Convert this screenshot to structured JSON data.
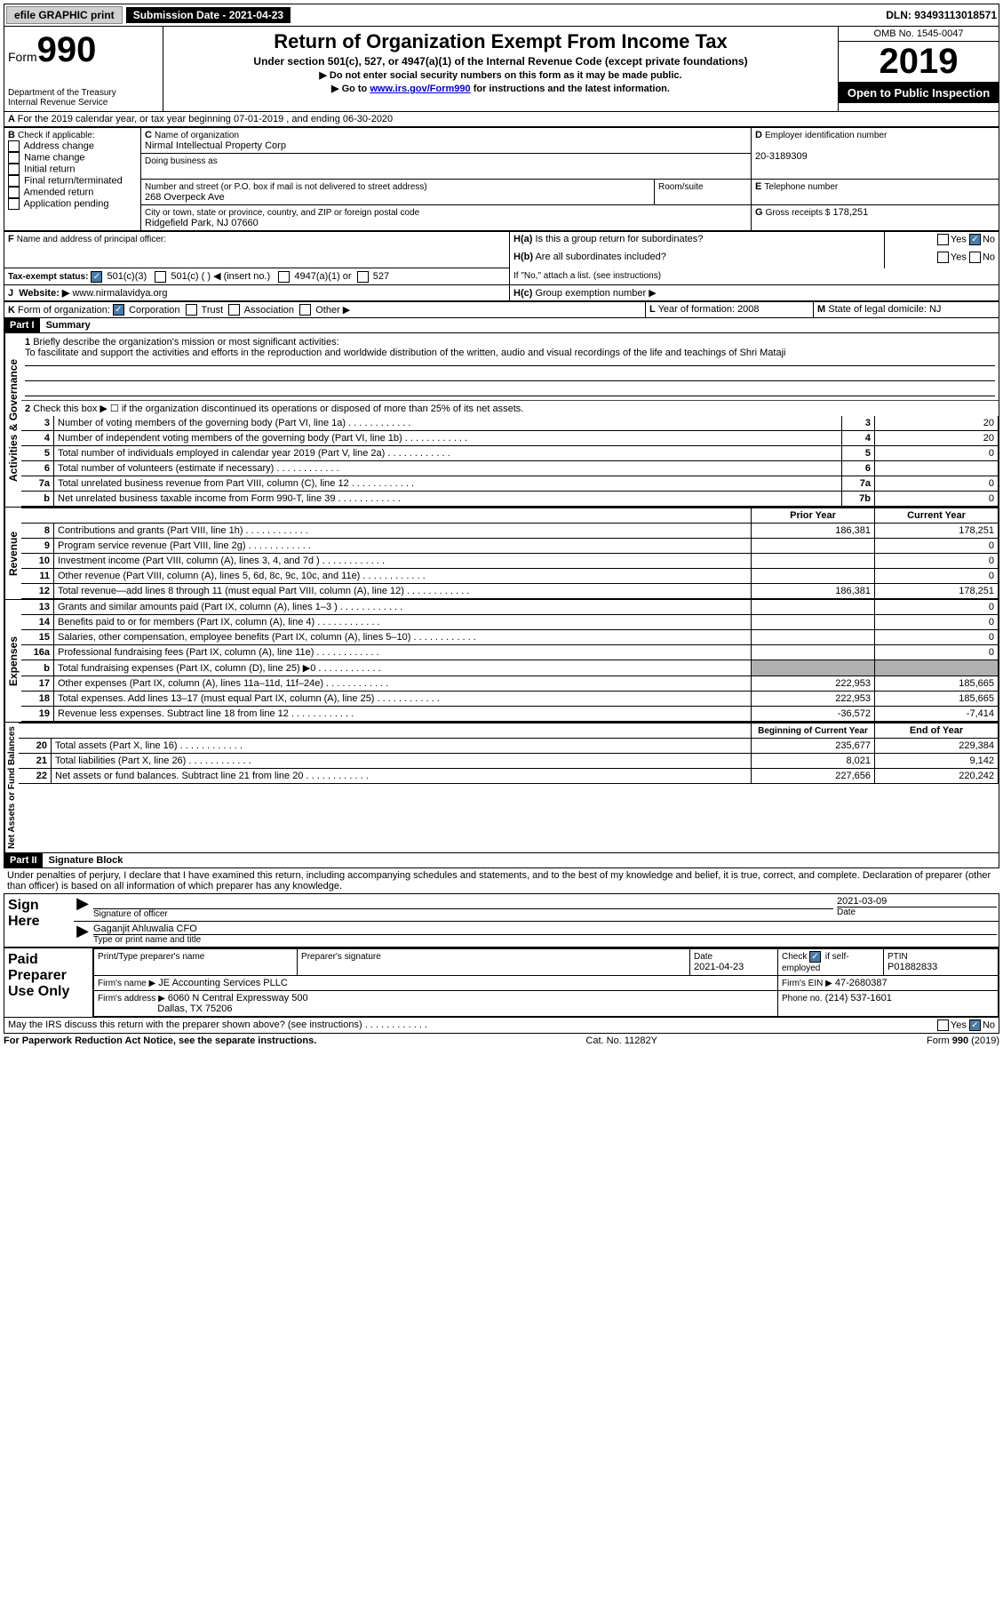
{
  "top_bar": {
    "efile": "efile GRAPHIC print",
    "submission": "Submission Date - 2021-04-23",
    "dln": "DLN: 93493113018571"
  },
  "header": {
    "form_label": "Form",
    "form_num": "990",
    "dept": "Department of the Treasury",
    "irs": "Internal Revenue Service",
    "title": "Return of Organization Exempt From Income Tax",
    "subtitle": "Under section 501(c), 527, or 4947(a)(1) of the Internal Revenue Code (except private foundations)",
    "note1": "Do not enter social security numbers on this form as it may be made public.",
    "note2_pre": "Go to ",
    "note2_link": "www.irs.gov/Form990",
    "note2_post": " for instructions and the latest information.",
    "omb": "OMB No. 1545-0047",
    "year": "2019",
    "inspection": "Open to Public Inspection"
  },
  "section_a": {
    "line": "For the 2019 calendar year, or tax year beginning 07-01-2019    , and ending 06-30-2020"
  },
  "section_b": {
    "label": "Check if applicable:",
    "opts": [
      "Address change",
      "Name change",
      "Initial return",
      "Final return/terminated",
      "Amended return",
      "Application pending"
    ]
  },
  "section_c": {
    "name_label": "Name of organization",
    "name": "Nirmal Intellectual Property Corp",
    "dba_label": "Doing business as",
    "addr_label": "Number and street (or P.O. box if mail is not delivered to street address)",
    "room_label": "Room/suite",
    "addr": "268 Overpeck Ave",
    "city_label": "City or town, state or province, country, and ZIP or foreign postal code",
    "city": "Ridgefield Park, NJ  07660"
  },
  "section_d": {
    "label": "Employer identification number",
    "value": "20-3189309"
  },
  "section_e": {
    "label": "Telephone number"
  },
  "section_g": {
    "label": "Gross receipts $",
    "value": "178,251"
  },
  "section_f": {
    "label": "Name and address of principal officer:"
  },
  "section_h": {
    "a": "Is this a group return for subordinates?",
    "b": "Are all subordinates included?",
    "b_note": "If \"No,\" attach a list. (see instructions)",
    "c": "Group exemption number ▶",
    "yes": "Yes",
    "no": "No"
  },
  "tax_exempt": {
    "label": "Tax-exempt status:",
    "opt1": "501(c)(3)",
    "opt2": "501(c) (  ) ◀ (insert no.)",
    "opt3": "4947(a)(1) or",
    "opt4": "527"
  },
  "section_j": {
    "label": "Website: ▶",
    "value": "www.nirmalavidya.org"
  },
  "section_k": {
    "label": "Form of organization:",
    "opts": [
      "Corporation",
      "Trust",
      "Association",
      "Other ▶"
    ]
  },
  "section_l": {
    "label": "Year of formation:",
    "value": "2008"
  },
  "section_m": {
    "label": "State of legal domicile:",
    "value": "NJ"
  },
  "part1": {
    "header": "Part I",
    "title": "Summary"
  },
  "summary": {
    "line1_label": "Briefly describe the organization's mission or most significant activities:",
    "line1_text": "To fascilitate and support the activities and efforts in the reproduction and worldwide distribution of the written, audio and visual recordings of the life and teachings of Shri Mataji",
    "line2": "Check this box ▶ ☐  if the organization discontinued its operations or disposed of more than 25% of its net assets.",
    "rows_gov": [
      {
        "n": "3",
        "label": "Number of voting members of the governing body (Part VI, line 1a)",
        "box": "3",
        "val": "20"
      },
      {
        "n": "4",
        "label": "Number of independent voting members of the governing body (Part VI, line 1b)",
        "box": "4",
        "val": "20"
      },
      {
        "n": "5",
        "label": "Total number of individuals employed in calendar year 2019 (Part V, line 2a)",
        "box": "5",
        "val": "0"
      },
      {
        "n": "6",
        "label": "Total number of volunteers (estimate if necessary)",
        "box": "6",
        "val": ""
      },
      {
        "n": "7a",
        "label": "Total unrelated business revenue from Part VIII, column (C), line 12",
        "box": "7a",
        "val": "0"
      },
      {
        "n": "b",
        "label": "Net unrelated business taxable income from Form 990-T, line 39",
        "box": "7b",
        "val": "0"
      }
    ],
    "prior": "Prior Year",
    "current": "Current Year",
    "rows_rev": [
      {
        "n": "8",
        "label": "Contributions and grants (Part VIII, line 1h)",
        "py": "186,381",
        "cy": "178,251"
      },
      {
        "n": "9",
        "label": "Program service revenue (Part VIII, line 2g)",
        "py": "",
        "cy": "0"
      },
      {
        "n": "10",
        "label": "Investment income (Part VIII, column (A), lines 3, 4, and 7d )",
        "py": "",
        "cy": "0"
      },
      {
        "n": "11",
        "label": "Other revenue (Part VIII, column (A), lines 5, 6d, 8c, 9c, 10c, and 11e)",
        "py": "",
        "cy": "0"
      },
      {
        "n": "12",
        "label": "Total revenue—add lines 8 through 11 (must equal Part VIII, column (A), line 12)",
        "py": "186,381",
        "cy": "178,251"
      }
    ],
    "rows_exp": [
      {
        "n": "13",
        "label": "Grants and similar amounts paid (Part IX, column (A), lines 1–3 )",
        "py": "",
        "cy": "0"
      },
      {
        "n": "14",
        "label": "Benefits paid to or for members (Part IX, column (A), line 4)",
        "py": "",
        "cy": "0"
      },
      {
        "n": "15",
        "label": "Salaries, other compensation, employee benefits (Part IX, column (A), lines 5–10)",
        "py": "",
        "cy": "0"
      },
      {
        "n": "16a",
        "label": "Professional fundraising fees (Part IX, column (A), line 11e)",
        "py": "",
        "cy": "0"
      },
      {
        "n": "b",
        "label": "Total fundraising expenses (Part IX, column (D), line 25) ▶0",
        "py": "",
        "cy": "",
        "shade": true
      },
      {
        "n": "17",
        "label": "Other expenses (Part IX, column (A), lines 11a–11d, 11f–24e)",
        "py": "222,953",
        "cy": "185,665"
      },
      {
        "n": "18",
        "label": "Total expenses. Add lines 13–17 (must equal Part IX, column (A), line 25)",
        "py": "222,953",
        "cy": "185,665"
      },
      {
        "n": "19",
        "label": "Revenue less expenses. Subtract line 18 from line 12",
        "py": "-36,572",
        "cy": "-7,414"
      }
    ],
    "begin": "Beginning of Current Year",
    "end": "End of Year",
    "rows_net": [
      {
        "n": "20",
        "label": "Total assets (Part X, line 16)",
        "py": "235,677",
        "cy": "229,384"
      },
      {
        "n": "21",
        "label": "Total liabilities (Part X, line 26)",
        "py": "8,021",
        "cy": "9,142"
      },
      {
        "n": "22",
        "label": "Net assets or fund balances. Subtract line 21 from line 20",
        "py": "227,656",
        "cy": "220,242"
      }
    ],
    "sides": {
      "gov": "Activities & Governance",
      "rev": "Revenue",
      "exp": "Expenses",
      "net": "Net Assets or Fund Balances"
    }
  },
  "part2": {
    "header": "Part II",
    "title": "Signature Block"
  },
  "sig": {
    "penalty": "Under penalties of perjury, I declare that I have examined this return, including accompanying schedules and statements, and to the best of my knowledge and belief, it is true, correct, and complete. Declaration of preparer (other than officer) is based on all information of which preparer has any knowledge.",
    "here": "Sign Here",
    "officer_sig": "Signature of officer",
    "date_label": "Date",
    "date": "2021-03-09",
    "name": "Gaganjit Ahluwalia  CFO",
    "name_label": "Type or print name and title"
  },
  "prep": {
    "title": "Paid Preparer Use Only",
    "name_label": "Print/Type preparer's name",
    "sig_label": "Preparer's signature",
    "date_label": "Date",
    "date": "2021-04-23",
    "check_label": "Check ☑ if self-employed",
    "ptin_label": "PTIN",
    "ptin": "P01882833",
    "firm_name_label": "Firm's name   ▶",
    "firm_name": "JE Accounting Services PLLC",
    "firm_ein_label": "Firm's EIN ▶",
    "firm_ein": "47-2680387",
    "firm_addr_label": "Firm's address ▶",
    "firm_addr1": "6060 N Central Expressway 500",
    "firm_addr2": "Dallas, TX  75206",
    "phone_label": "Phone no.",
    "phone": "(214) 537-1601"
  },
  "discuss": "May the IRS discuss this return with the preparer shown above? (see instructions)",
  "footer": {
    "left": "For Paperwork Reduction Act Notice, see the separate instructions.",
    "center": "Cat. No. 11282Y",
    "right": "Form 990 (2019)"
  }
}
